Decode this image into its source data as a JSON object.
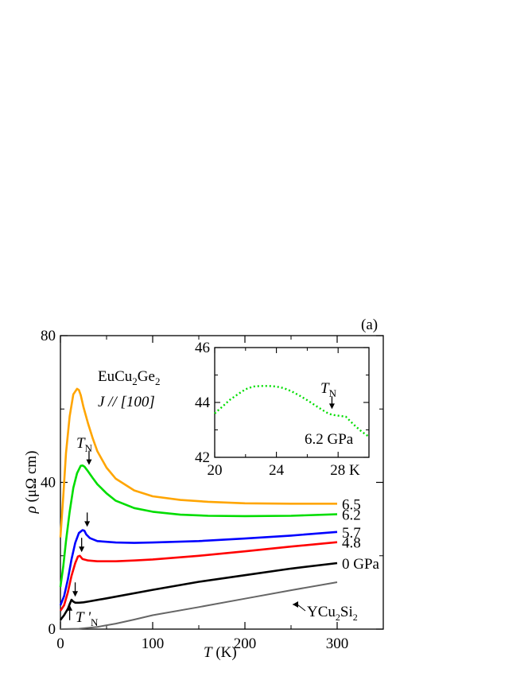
{
  "panel_label": "(a)",
  "chart_data": [
    {
      "type": "line",
      "xlabel": "T (K)",
      "ylabel": "ρ (μΩ cm)",
      "xlim": [
        0,
        350
      ],
      "ylim": [
        0,
        80
      ],
      "x_ticks": [
        0,
        100,
        200,
        300
      ],
      "y_ticks": [
        0,
        40,
        80
      ],
      "x_minor_ticks": [
        50,
        150,
        250
      ],
      "y_minor_ticks": [
        20,
        60
      ],
      "annotation_title_main": "EuCu",
      "annotation_title_sub1": "2",
      "annotation_title_mid": "Ge",
      "annotation_title_sub2": "2",
      "annotation_current_dir": "J // [100]",
      "tn_label_main": "T",
      "tn_label_sub": "N",
      "tnp_label_main": "T '",
      "tnp_label_sub": "N",
      "ycu_label_main": "YCu",
      "ycu_label_sub1": "2",
      "ycu_label_mid": "Si",
      "ycu_label_sub2": "2",
      "series": [
        {
          "name": "0 GPa",
          "color": "#000000",
          "x": [
            0,
            4,
            8,
            10,
            12,
            14,
            16,
            20,
            25,
            30,
            50,
            100,
            150,
            200,
            250,
            300
          ],
          "y": [
            2.5,
            3.8,
            5.5,
            6.8,
            8.0,
            7.5,
            7.2,
            7.2,
            7.3,
            7.5,
            8.4,
            10.7,
            12.9,
            14.7,
            16.5,
            18.0
          ],
          "tn": 13
        },
        {
          "name": "4.8",
          "color": "#ff0000",
          "x": [
            0,
            4,
            8,
            12,
            16,
            19,
            21,
            24,
            30,
            40,
            60,
            80,
            100,
            150,
            200,
            250,
            300
          ],
          "y": [
            5.0,
            6.5,
            10.0,
            14.5,
            18.0,
            19.8,
            20.0,
            19.1,
            18.7,
            18.5,
            18.5,
            18.7,
            19.0,
            20.0,
            21.2,
            22.5,
            23.7
          ],
          "tn": 20
        },
        {
          "name": "5.7",
          "color": "#0000ff",
          "x": [
            0,
            4,
            8,
            12,
            16,
            20,
            24,
            26,
            28,
            32,
            40,
            60,
            80,
            100,
            150,
            200,
            250,
            300
          ],
          "y": [
            6.5,
            9.0,
            13.5,
            19.0,
            23.5,
            26.2,
            27.0,
            26.8,
            25.8,
            24.8,
            24.0,
            23.6,
            23.5,
            23.6,
            24.0,
            24.7,
            25.5,
            26.5
          ],
          "tn": 26
        },
        {
          "name": "6.2",
          "color": "#00dd00",
          "x": [
            0,
            3,
            6,
            10,
            14,
            18,
            22,
            24,
            26,
            30,
            35,
            40,
            50,
            60,
            80,
            100,
            130,
            160,
            200,
            250,
            300
          ],
          "y": [
            11.5,
            17.0,
            24.0,
            32.0,
            38.5,
            42.5,
            44.5,
            44.6,
            44.3,
            43.0,
            41.2,
            39.5,
            37.0,
            35.0,
            33.0,
            32.0,
            31.2,
            30.9,
            30.8,
            30.9,
            31.3
          ],
          "tn": 28
        },
        {
          "name": "6.5",
          "color": "#ffa500",
          "x": [
            0,
            3,
            6,
            10,
            14,
            18,
            20,
            22,
            25,
            30,
            35,
            40,
            50,
            60,
            80,
            100,
            130,
            160,
            200,
            250,
            300
          ],
          "y": [
            25.0,
            36.0,
            48.0,
            58.0,
            64.0,
            65.5,
            65.2,
            63.8,
            60.5,
            56.0,
            52.0,
            48.5,
            44.0,
            41.0,
            37.8,
            36.2,
            35.2,
            34.7,
            34.3,
            34.2,
            34.2
          ]
        }
      ]
    },
    {
      "type": "line",
      "xlim": [
        20,
        30
      ],
      "ylim": [
        42,
        46
      ],
      "x_ticks": [
        20,
        24,
        28
      ],
      "x_tick_labels": [
        "20",
        "24",
        "28 K"
      ],
      "y_ticks": [
        42,
        44,
        46
      ],
      "x_minor_ticks": [
        22,
        26
      ],
      "y_minor_ticks": [
        43,
        45
      ],
      "series_label": "6.2 GPa",
      "tn_label_main": "T",
      "tn_label_sub": "N",
      "tn": 27.6,
      "series": [
        {
          "name": "6.2 GPa",
          "color": "#00dd00",
          "style": "dotted",
          "x": [
            20,
            20.5,
            21,
            21.5,
            22,
            22.5,
            23,
            23.5,
            24,
            24.5,
            25,
            25.5,
            26,
            26.5,
            27,
            27.3,
            27.6,
            28,
            28.5,
            29,
            29.5,
            30
          ],
          "y": [
            43.6,
            43.85,
            44.1,
            44.3,
            44.48,
            44.58,
            44.6,
            44.6,
            44.58,
            44.52,
            44.4,
            44.25,
            44.08,
            43.9,
            43.72,
            43.62,
            43.55,
            43.52,
            43.48,
            43.2,
            42.95,
            42.75
          ]
        }
      ]
    },
    {
      "type": "line",
      "name": "YCu2Si2",
      "color": "#666666",
      "x": [
        0,
        20,
        40,
        60,
        80,
        100,
        150,
        200,
        250,
        300
      ],
      "y": [
        0.0,
        0.1,
        0.6,
        1.5,
        2.6,
        3.8,
        6.0,
        8.3,
        10.6,
        12.8
      ]
    }
  ]
}
